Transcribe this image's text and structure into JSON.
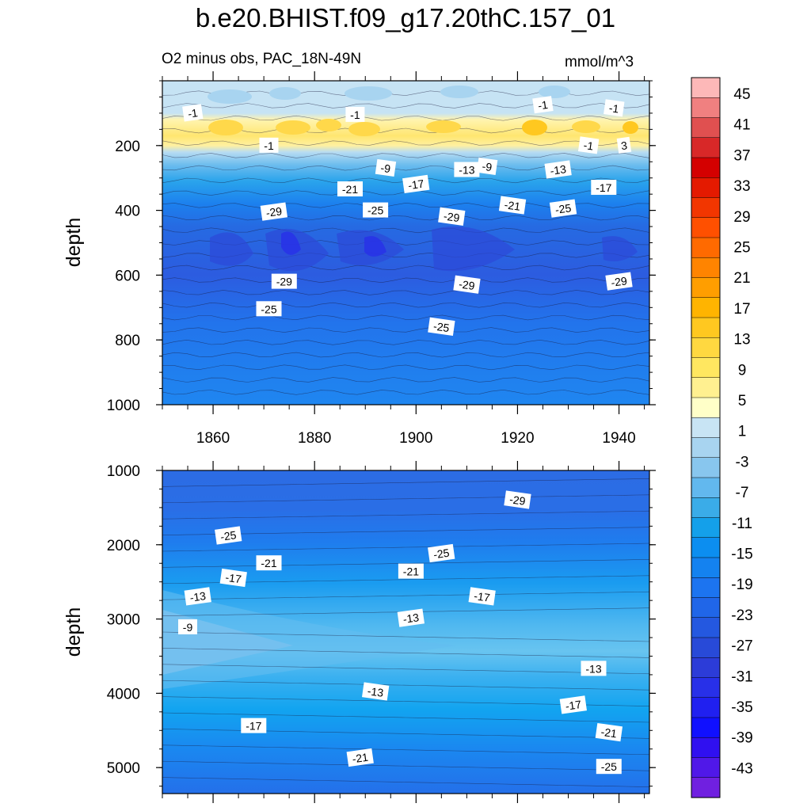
{
  "title": "b.e20.BHIST.f09_g17.20thC.157_01",
  "subtitle_left": "O2 minus obs, PAC_18N-49N",
  "subtitle_right": "mmol/m^3",
  "chart_data": [
    {
      "type": "heatmap",
      "panel": "upper",
      "xlabel": "",
      "ylabel": "depth",
      "xlim": [
        1850,
        1946
      ],
      "ylim": [
        1000,
        0
      ],
      "x_ticks": [
        1860,
        1880,
        1900,
        1920,
        1940
      ],
      "y_ticks": [
        200,
        400,
        600,
        800,
        1000
      ],
      "bands": [
        {
          "depth": [
            0,
            80
          ],
          "value": -3
        },
        {
          "depth": [
            80,
            140
          ],
          "value": 1
        },
        {
          "depth": [
            140,
            200
          ],
          "value": 3
        },
        {
          "depth": [
            200,
            230
          ],
          "value": -5
        },
        {
          "depth": [
            230,
            270
          ],
          "value": -13
        },
        {
          "depth": [
            270,
            330
          ],
          "value": -19
        },
        {
          "depth": [
            330,
            420
          ],
          "value": -25
        },
        {
          "depth": [
            420,
            610
          ],
          "value": -29
        },
        {
          "depth": [
            610,
            760
          ],
          "value": -27
        },
        {
          "depth": [
            760,
            1000
          ],
          "value": -23
        }
      ],
      "contour_labels": [
        {
          "x": 1856,
          "depth": 100,
          "text": "-1"
        },
        {
          "x": 1888,
          "depth": 105,
          "text": "-1"
        },
        {
          "x": 1939,
          "depth": 85,
          "text": "-1"
        },
        {
          "x": 1925,
          "depth": 75,
          "text": "-1"
        },
        {
          "x": 1871,
          "depth": 200,
          "text": "-1"
        },
        {
          "x": 1934,
          "depth": 200,
          "text": "-1"
        },
        {
          "x": 1941,
          "depth": 200,
          "text": "3"
        },
        {
          "x": 1887,
          "depth": 335,
          "text": "-21"
        },
        {
          "x": 1894,
          "depth": 270,
          "text": "-9"
        },
        {
          "x": 1900,
          "depth": 320,
          "text": "-17"
        },
        {
          "x": 1910,
          "depth": 275,
          "text": "-13"
        },
        {
          "x": 1914,
          "depth": 265,
          "text": "-9"
        },
        {
          "x": 1928,
          "depth": 275,
          "text": "-13"
        },
        {
          "x": 1937,
          "depth": 330,
          "text": "-17"
        },
        {
          "x": 1919,
          "depth": 385,
          "text": "-21"
        },
        {
          "x": 1872,
          "depth": 405,
          "text": "-29"
        },
        {
          "x": 1892,
          "depth": 400,
          "text": "-25"
        },
        {
          "x": 1907,
          "depth": 420,
          "text": "-29"
        },
        {
          "x": 1929,
          "depth": 395,
          "text": "-25"
        },
        {
          "x": 1874,
          "depth": 620,
          "text": "-29"
        },
        {
          "x": 1910,
          "depth": 630,
          "text": "-29"
        },
        {
          "x": 1940,
          "depth": 620,
          "text": "-29"
        },
        {
          "x": 1871,
          "depth": 705,
          "text": "-25"
        },
        {
          "x": 1905,
          "depth": 760,
          "text": "-25"
        }
      ]
    },
    {
      "type": "heatmap",
      "panel": "lower",
      "xlabel": "",
      "ylabel": "depth",
      "xlim": [
        1850,
        1946
      ],
      "ylim": [
        5350,
        1000
      ],
      "y_ticks": [
        1000,
        2000,
        3000,
        4000,
        5000
      ],
      "contour_labels": [
        {
          "x": 1863,
          "depth": 1880,
          "text": "-25"
        },
        {
          "x": 1871,
          "depth": 2250,
          "text": "-21"
        },
        {
          "x": 1864,
          "depth": 2450,
          "text": "-17"
        },
        {
          "x": 1857,
          "depth": 2700,
          "text": "-13"
        },
        {
          "x": 1855,
          "depth": 3110,
          "text": "-9"
        },
        {
          "x": 1920,
          "depth": 1400,
          "text": "-29"
        },
        {
          "x": 1905,
          "depth": 2120,
          "text": "-25"
        },
        {
          "x": 1899,
          "depth": 2360,
          "text": "-21"
        },
        {
          "x": 1913,
          "depth": 2700,
          "text": "-17"
        },
        {
          "x": 1899,
          "depth": 2990,
          "text": "-13"
        },
        {
          "x": 1935,
          "depth": 3670,
          "text": "-13"
        },
        {
          "x": 1892,
          "depth": 3980,
          "text": "-13"
        },
        {
          "x": 1931,
          "depth": 4160,
          "text": "-17"
        },
        {
          "x": 1868,
          "depth": 4440,
          "text": "-17"
        },
        {
          "x": 1938,
          "depth": 4530,
          "text": "-21"
        },
        {
          "x": 1889,
          "depth": 4870,
          "text": "-21"
        },
        {
          "x": 1938,
          "depth": 4990,
          "text": "-25"
        }
      ]
    }
  ],
  "colorbar": {
    "labels": [
      "45",
      "41",
      "37",
      "33",
      "29",
      "25",
      "21",
      "17",
      "13",
      "9",
      "5",
      "1",
      "-3",
      "-7",
      "-11",
      "-15",
      "-19",
      "-23",
      "-27",
      "-31",
      "-35",
      "-39",
      "-43"
    ],
    "colors": [
      "#fdb8b8",
      "#f08080",
      "#e05050",
      "#d82828",
      "#d40000",
      "#e41a00",
      "#f23600",
      "#ff5000",
      "#ff6a00",
      "#ff8400",
      "#ff9e00",
      "#ffb400",
      "#ffc820",
      "#ffd840",
      "#ffe760",
      "#fff090",
      "#ffffc8",
      "#c8e4f4",
      "#a8d4f0",
      "#88c6ee",
      "#62b8ee",
      "#3aace8",
      "#14a0ea",
      "#0c8ef0",
      "#1482f0",
      "#1c74f0",
      "#2066e8",
      "#2458e0",
      "#284ad8",
      "#2c3cd8",
      "#2830e8",
      "#2020f0",
      "#1010ff",
      "#3010f0",
      "#5018e8",
      "#7020e0"
    ]
  }
}
